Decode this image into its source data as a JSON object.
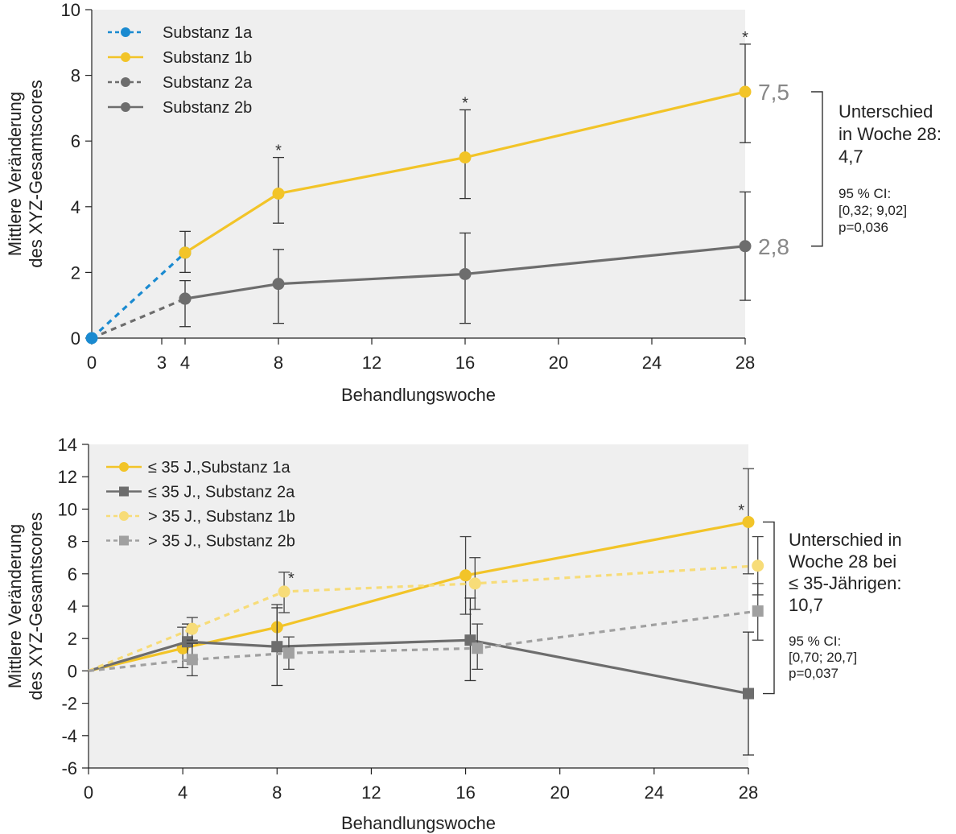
{
  "chart_data": [
    {
      "type": "line",
      "xlabel": "Behandlungswoche",
      "ylabel_line1": "Mittlere Veränderung",
      "ylabel_line2": "des XYZ-Gesamtscores",
      "xlim": [
        0,
        28
      ],
      "ylim": [
        0,
        10
      ],
      "x_ticks": [
        0,
        3,
        4,
        8,
        12,
        16,
        20,
        24,
        28
      ],
      "y_ticks": [
        0,
        2,
        4,
        6,
        8,
        10
      ],
      "grid": false,
      "legend_position": "top-left",
      "colors": {
        "yellow": "#f2c428",
        "blue": "#1a8ad0",
        "gray": "#6d6d6d",
        "gray_light": "#888888"
      },
      "series": [
        {
          "name": "Substanz 1a",
          "color": "#1a8ad0",
          "style": "dashed",
          "points": [
            {
              "x": 0,
              "y": 0
            },
            {
              "x": 4,
              "y": 2.6
            }
          ]
        },
        {
          "name": "Substanz 1b",
          "color": "#f2c428",
          "style": "solid",
          "points": [
            {
              "x": 4,
              "y": 2.6,
              "err_low": 2.0,
              "err_high": 3.25
            },
            {
              "x": 8,
              "y": 4.4,
              "err_low": 3.5,
              "err_high": 5.5
            },
            {
              "x": 16,
              "y": 5.5,
              "err_low": 4.25,
              "err_high": 6.95
            },
            {
              "x": 28,
              "y": 7.5,
              "err_low": 5.95,
              "err_high": 8.95
            }
          ]
        },
        {
          "name": "Substanz 2a",
          "color": "#6d6d6d",
          "style": "dashed",
          "points": [
            {
              "x": 0,
              "y": 0
            },
            {
              "x": 4,
              "y": 1.2
            }
          ]
        },
        {
          "name": "Substanz 2b",
          "color": "#6d6d6d",
          "style": "solid",
          "points": [
            {
              "x": 4,
              "y": 1.2,
              "err_low": 0.35,
              "err_high": 1.75
            },
            {
              "x": 8,
              "y": 1.65,
              "err_low": 0.45,
              "err_high": 2.7
            },
            {
              "x": 16,
              "y": 1.95,
              "err_low": 0.45,
              "err_high": 3.2
            },
            {
              "x": 28,
              "y": 2.8,
              "err_low": 1.15,
              "err_high": 4.45
            }
          ]
        }
      ],
      "start_point": {
        "x": 0,
        "y": 0,
        "color": "#1a8ad0"
      },
      "significance_markers": [
        {
          "x": 8,
          "y": 5.5
        },
        {
          "x": 16,
          "y": 6.95
        },
        {
          "x": 28,
          "y": 8.95
        }
      ],
      "end_labels": [
        {
          "text": "7,5",
          "y": 7.5
        },
        {
          "text": "2,8",
          "y": 2.8
        }
      ],
      "bracket": {
        "y_top": 7.5,
        "y_bottom": 2.8
      },
      "annotation": {
        "lines": [
          "Unterschied",
          "in Woche 28:",
          "4,7"
        ],
        "ci_lines": [
          "95 % CI:",
          "[0,32; 9,02]",
          "p=0,036"
        ]
      }
    },
    {
      "type": "line",
      "xlabel": "Behandlungswoche",
      "ylabel_line1": "Mittlere Veränderung",
      "ylabel_line2": "des XYZ-Gesamtscores",
      "xlim": [
        0,
        28
      ],
      "ylim": [
        -6,
        14
      ],
      "x_ticks": [
        0,
        4,
        8,
        12,
        16,
        20,
        24,
        28
      ],
      "y_ticks": [
        -6,
        -4,
        -2,
        0,
        2,
        4,
        6,
        8,
        10,
        12,
        14
      ],
      "grid": false,
      "legend_position": "top-left",
      "series": [
        {
          "name": "≤ 35 J.,Substanz 1a",
          "color": "#f2c428",
          "style": "solid",
          "marker": "circle",
          "points": [
            {
              "x": 0,
              "y": 0
            },
            {
              "x": 4,
              "y": 1.4,
              "err_low": 0.2,
              "err_high": 2.7
            },
            {
              "x": 8,
              "y": 2.7,
              "err_low": 1.2,
              "err_high": 4.1
            },
            {
              "x": 16,
              "y": 5.9,
              "err_low": 3.5,
              "err_high": 8.3
            },
            {
              "x": 28,
              "y": 9.2,
              "err_low": 6.0,
              "err_high": 12.5
            }
          ]
        },
        {
          "name": "≤ 35 J., Substanz 2a",
          "color": "#6d6d6d",
          "style": "solid",
          "marker": "square",
          "points": [
            {
              "x": 0,
              "y": 0
            },
            {
              "x": 4.2,
              "y": 1.8,
              "err_low": 0.6,
              "err_high": 2.9
            },
            {
              "x": 8,
              "y": 1.5,
              "err_low": -0.9,
              "err_high": 3.9
            },
            {
              "x": 16.2,
              "y": 1.9,
              "err_low": -0.6,
              "err_high": 4.5
            },
            {
              "x": 28,
              "y": -1.4,
              "err_low": -5.2,
              "err_high": 2.4
            }
          ]
        },
        {
          "name": "> 35 J., Substanz 1b",
          "color": "#f7dc78",
          "style": "dashed",
          "marker": "circle",
          "points": [
            {
              "x": 0,
              "y": 0
            },
            {
              "x": 4.4,
              "y": 2.6,
              "err_low": 1.9,
              "err_high": 3.3
            },
            {
              "x": 8.3,
              "y": 4.9,
              "err_low": 3.6,
              "err_high": 6.1
            },
            {
              "x": 16.4,
              "y": 5.4,
              "err_low": 3.8,
              "err_high": 7.0
            },
            {
              "x": 28.4,
              "y": 6.5,
              "err_low": 4.7,
              "err_high": 8.3
            }
          ]
        },
        {
          "name": "> 35 J., Substanz 2b",
          "color": "#a0a0a0",
          "style": "dashed",
          "marker": "square",
          "points": [
            {
              "x": 0,
              "y": 0
            },
            {
              "x": 4.4,
              "y": 0.7,
              "err_low": -0.3,
              "err_high": 1.7
            },
            {
              "x": 8.5,
              "y": 1.1,
              "err_low": 0.1,
              "err_high": 2.1
            },
            {
              "x": 16.5,
              "y": 1.4,
              "err_low": 0.1,
              "err_high": 2.9
            },
            {
              "x": 28.4,
              "y": 3.7,
              "err_low": 1.9,
              "err_high": 5.4
            }
          ]
        }
      ],
      "significance_markers": [
        {
          "x": 8.6,
          "y": 5.3
        },
        {
          "x": 27.7,
          "y": 9.5
        }
      ],
      "bracket": {
        "y_top": 9.2,
        "y_bottom": -1.4
      },
      "annotation": {
        "lines": [
          "Unterschied in",
          "Woche 28 bei",
          "≤ 35-Jährigen:",
          "10,7"
        ],
        "ci_lines": [
          "95 % CI:",
          "[0,70; 20,7]",
          "p=0,037"
        ]
      }
    }
  ]
}
